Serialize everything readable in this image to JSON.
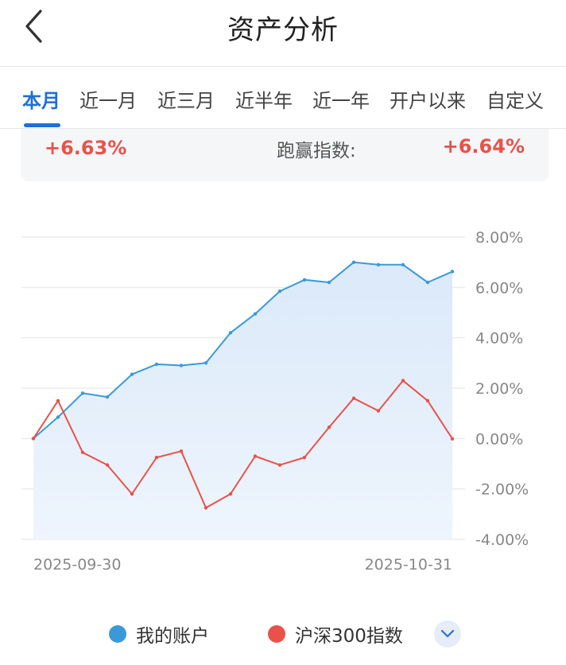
{
  "header": {
    "title": "资产分析",
    "back_icon": "chevron-left-icon"
  },
  "tabs": [
    {
      "label": "本月",
      "active": true
    },
    {
      "label": "近一月",
      "active": false
    },
    {
      "label": "近三月",
      "active": false
    },
    {
      "label": "近半年",
      "active": false
    },
    {
      "label": "近一年",
      "active": false
    },
    {
      "label": "开户以来",
      "active": false
    },
    {
      "label": "自定义",
      "active": false
    }
  ],
  "summary": {
    "my_return": "+6.63%",
    "beat_index_label": "跑赢指数:",
    "beat_index_value": "+6.64%"
  },
  "legend": {
    "mine": "我的账户",
    "index": "沪深300指数",
    "expand_icon": "chevron-down-icon"
  },
  "colors": {
    "accent": "#1f6fd6",
    "mine": "#3a9ad9",
    "index": "#e8524a",
    "gain": "#e8524a"
  },
  "chart_data": {
    "type": "line",
    "y_ticks": [
      "8.00%",
      "6.00%",
      "4.00%",
      "2.00%",
      "0.00%",
      "-2.00%",
      "-4.00%"
    ],
    "ylim": [
      -4,
      8
    ],
    "x_tick_labels": [
      "2025-09-30",
      "2025-10-31"
    ],
    "series": [
      {
        "name": "我的账户",
        "color": "#3a9ad9",
        "fill": true,
        "values": [
          0.0,
          0.85,
          1.8,
          1.65,
          2.55,
          2.95,
          2.9,
          3.0,
          4.2,
          4.95,
          5.85,
          6.3,
          6.2,
          7.0,
          6.9,
          6.9,
          6.2,
          6.63
        ]
      },
      {
        "name": "沪深300指数",
        "color": "#e8524a",
        "fill": false,
        "values": [
          0.0,
          1.5,
          -0.55,
          -1.05,
          -2.2,
          -0.75,
          -0.5,
          -2.75,
          -2.2,
          -0.7,
          -1.05,
          -0.75,
          0.45,
          1.6,
          1.1,
          2.3,
          1.5,
          -0.01
        ]
      }
    ]
  }
}
